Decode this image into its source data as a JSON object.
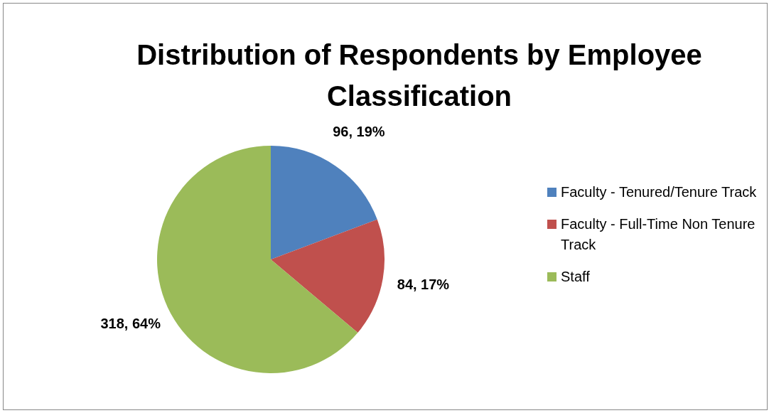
{
  "chart_data": {
    "type": "pie",
    "title": "Distribution of Respondents by Employee Classification",
    "categories": [
      "Faculty - Tenured/Tenure Track",
      "Faculty - Full-Time Non Tenure Track",
      "Staff"
    ],
    "values": [
      96,
      84,
      318
    ],
    "colors": [
      "#4f81bd",
      "#c0504d",
      "#9bbb59"
    ],
    "value_labels": [
      "96, 19%",
      "84, 17%",
      "318, 64%"
    ],
    "legend": "right"
  }
}
